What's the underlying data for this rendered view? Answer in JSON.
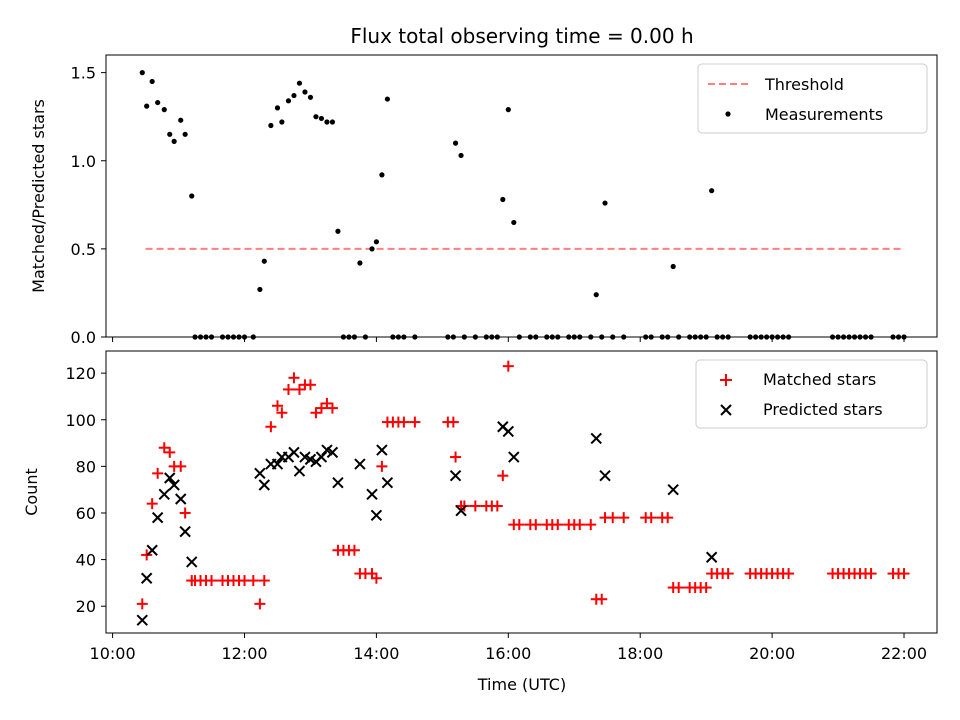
{
  "chart_data": [
    {
      "type": "scatter",
      "title": "Flux total observing time = 0.00 h",
      "xlabel": "",
      "ylabel": "Matched/Predicted stars",
      "xlim": [
        "09:54",
        "22:30"
      ],
      "ylim": [
        0,
        1.6
      ],
      "yticks": [
        "0.0",
        "0.5",
        "1.0",
        "1.5"
      ],
      "legend_position": "top-right",
      "legend": [
        {
          "label": "Threshold",
          "type": "dashed-line",
          "color": "#ff8080"
        },
        {
          "label": "Measurements",
          "type": "dot",
          "color": "#000000"
        }
      ],
      "threshold": {
        "name": "Threshold",
        "value": 0.5,
        "x_start": "10:30",
        "x_end": "22:00",
        "color": "#ff8080"
      },
      "series": [
        {
          "name": "Measurements",
          "color": "#000000",
          "points": [
            [
              "10:27",
              1.5
            ],
            [
              "10:31",
              1.31
            ],
            [
              "10:36",
              1.45
            ],
            [
              "10:41",
              1.33
            ],
            [
              "10:47",
              1.29
            ],
            [
              "10:52",
              1.15
            ],
            [
              "10:56",
              1.11
            ],
            [
              "11:02",
              1.23
            ],
            [
              "11:06",
              1.15
            ],
            [
              "11:12",
              0.8
            ],
            [
              "11:15",
              0.0
            ],
            [
              "11:20",
              0.0
            ],
            [
              "11:25",
              0.0
            ],
            [
              "11:30",
              0.0
            ],
            [
              "11:40",
              0.0
            ],
            [
              "11:45",
              0.0
            ],
            [
              "11:50",
              0.0
            ],
            [
              "11:55",
              0.0
            ],
            [
              "12:00",
              0.0
            ],
            [
              "12:08",
              0.0
            ],
            [
              "12:14",
              0.27
            ],
            [
              "12:18",
              0.43
            ],
            [
              "12:24",
              1.2
            ],
            [
              "12:30",
              1.3
            ],
            [
              "12:34",
              1.22
            ],
            [
              "12:40",
              1.34
            ],
            [
              "12:45",
              1.37
            ],
            [
              "12:50",
              1.44
            ],
            [
              "12:55",
              1.39
            ],
            [
              "13:00",
              1.36
            ],
            [
              "13:05",
              1.25
            ],
            [
              "13:10",
              1.24
            ],
            [
              "13:15",
              1.22
            ],
            [
              "13:20",
              1.22
            ],
            [
              "13:25",
              0.6
            ],
            [
              "13:30",
              0.0
            ],
            [
              "13:35",
              0.0
            ],
            [
              "13:40",
              0.0
            ],
            [
              "13:45",
              0.42
            ],
            [
              "13:50",
              0.0
            ],
            [
              "13:56",
              0.5
            ],
            [
              "14:00",
              0.54
            ],
            [
              "14:05",
              0.92
            ],
            [
              "14:10",
              1.35
            ],
            [
              "14:15",
              0.0
            ],
            [
              "14:20",
              0.0
            ],
            [
              "14:25",
              0.0
            ],
            [
              "14:35",
              0.0
            ],
            [
              "15:05",
              0.0
            ],
            [
              "15:10",
              0.0
            ],
            [
              "15:12",
              1.1
            ],
            [
              "15:17",
              1.03
            ],
            [
              "15:20",
              0.0
            ],
            [
              "15:30",
              0.0
            ],
            [
              "15:40",
              0.0
            ],
            [
              "15:45",
              0.0
            ],
            [
              "15:50",
              0.0
            ],
            [
              "15:55",
              0.78
            ],
            [
              "16:00",
              1.29
            ],
            [
              "16:05",
              0.65
            ],
            [
              "16:10",
              0.0
            ],
            [
              "16:20",
              0.0
            ],
            [
              "16:25",
              0.0
            ],
            [
              "16:35",
              0.0
            ],
            [
              "16:40",
              0.0
            ],
            [
              "16:45",
              0.0
            ],
            [
              "16:55",
              0.0
            ],
            [
              "17:00",
              0.0
            ],
            [
              "17:05",
              0.0
            ],
            [
              "17:15",
              0.0
            ],
            [
              "17:20",
              0.24
            ],
            [
              "17:25",
              0.0
            ],
            [
              "17:28",
              0.76
            ],
            [
              "17:35",
              0.0
            ],
            [
              "17:45",
              0.0
            ],
            [
              "18:05",
              0.0
            ],
            [
              "18:10",
              0.0
            ],
            [
              "18:20",
              0.0
            ],
            [
              "18:25",
              0.0
            ],
            [
              "18:30",
              0.4
            ],
            [
              "18:35",
              0.0
            ],
            [
              "18:45",
              0.0
            ],
            [
              "18:50",
              0.0
            ],
            [
              "18:55",
              0.0
            ],
            [
              "19:00",
              0.0
            ],
            [
              "19:05",
              0.83
            ],
            [
              "19:10",
              0.0
            ],
            [
              "19:15",
              0.0
            ],
            [
              "19:20",
              0.0
            ],
            [
              "19:40",
              0.0
            ],
            [
              "19:45",
              0.0
            ],
            [
              "19:50",
              0.0
            ],
            [
              "19:55",
              0.0
            ],
            [
              "20:00",
              0.0
            ],
            [
              "20:05",
              0.0
            ],
            [
              "20:10",
              0.0
            ],
            [
              "20:15",
              0.0
            ],
            [
              "20:55",
              0.0
            ],
            [
              "21:00",
              0.0
            ],
            [
              "21:05",
              0.0
            ],
            [
              "21:10",
              0.0
            ],
            [
              "21:15",
              0.0
            ],
            [
              "21:20",
              0.0
            ],
            [
              "21:25",
              0.0
            ],
            [
              "21:30",
              0.0
            ],
            [
              "21:50",
              0.0
            ],
            [
              "21:55",
              0.0
            ],
            [
              "22:00",
              0.0
            ]
          ]
        }
      ]
    },
    {
      "type": "scatter",
      "title": "",
      "xlabel": "Time (UTC)",
      "ylabel": "Count",
      "xlim": [
        "09:54",
        "22:30"
      ],
      "ylim": [
        8.5,
        129.5
      ],
      "xticks": [
        "10:00",
        "12:00",
        "14:00",
        "16:00",
        "18:00",
        "20:00",
        "22:00"
      ],
      "yticks": [
        "20",
        "40",
        "60",
        "80",
        "100",
        "120"
      ],
      "legend_position": "top-right",
      "legend": [
        {
          "label": "Matched stars",
          "type": "plus",
          "color": "#ff0000"
        },
        {
          "label": "Predicted stars",
          "type": "x",
          "color": "#000000"
        }
      ],
      "series": [
        {
          "name": "Matched stars",
          "marker": "plus",
          "color": "#ff0000",
          "points": [
            [
              "10:27",
              21
            ],
            [
              "10:31",
              42
            ],
            [
              "10:36",
              64
            ],
            [
              "10:41",
              77
            ],
            [
              "10:47",
              88
            ],
            [
              "10:52",
              86
            ],
            [
              "10:56",
              80
            ],
            [
              "11:02",
              80
            ],
            [
              "11:06",
              60
            ],
            [
              "11:12",
              31
            ],
            [
              "11:15",
              31
            ],
            [
              "11:20",
              31
            ],
            [
              "11:25",
              31
            ],
            [
              "11:30",
              31
            ],
            [
              "11:40",
              31
            ],
            [
              "11:45",
              31
            ],
            [
              "11:50",
              31
            ],
            [
              "11:55",
              31
            ],
            [
              "12:00",
              31
            ],
            [
              "12:08",
              31
            ],
            [
              "12:14",
              21
            ],
            [
              "12:18",
              31
            ],
            [
              "12:24",
              97
            ],
            [
              "12:30",
              106
            ],
            [
              "12:34",
              103
            ],
            [
              "12:40",
              113
            ],
            [
              "12:45",
              118
            ],
            [
              "12:50",
              113
            ],
            [
              "12:55",
              115
            ],
            [
              "13:00",
              115
            ],
            [
              "13:05",
              103
            ],
            [
              "13:10",
              105
            ],
            [
              "13:15",
              107
            ],
            [
              "13:20",
              105
            ],
            [
              "13:25",
              44
            ],
            [
              "13:30",
              44
            ],
            [
              "13:35",
              44
            ],
            [
              "13:40",
              44
            ],
            [
              "13:45",
              34
            ],
            [
              "13:50",
              34
            ],
            [
              "13:56",
              34
            ],
            [
              "14:00",
              32
            ],
            [
              "14:05",
              80
            ],
            [
              "14:10",
              99
            ],
            [
              "14:15",
              99
            ],
            [
              "14:20",
              99
            ],
            [
              "14:25",
              99
            ],
            [
              "14:35",
              99
            ],
            [
              "15:05",
              99
            ],
            [
              "15:10",
              99
            ],
            [
              "15:12",
              84
            ],
            [
              "15:17",
              63
            ],
            [
              "15:20",
              63
            ],
            [
              "15:30",
              63
            ],
            [
              "15:40",
              63
            ],
            [
              "15:45",
              63
            ],
            [
              "15:50",
              63
            ],
            [
              "15:55",
              76
            ],
            [
              "16:00",
              123
            ],
            [
              "16:05",
              55
            ],
            [
              "16:10",
              55
            ],
            [
              "16:20",
              55
            ],
            [
              "16:25",
              55
            ],
            [
              "16:35",
              55
            ],
            [
              "16:40",
              55
            ],
            [
              "16:45",
              55
            ],
            [
              "16:55",
              55
            ],
            [
              "17:00",
              55
            ],
            [
              "17:05",
              55
            ],
            [
              "17:15",
              55
            ],
            [
              "17:20",
              23
            ],
            [
              "17:25",
              23
            ],
            [
              "17:28",
              58
            ],
            [
              "17:35",
              58
            ],
            [
              "17:45",
              58
            ],
            [
              "18:05",
              58
            ],
            [
              "18:10",
              58
            ],
            [
              "18:20",
              58
            ],
            [
              "18:25",
              58
            ],
            [
              "18:30",
              28
            ],
            [
              "18:35",
              28
            ],
            [
              "18:45",
              28
            ],
            [
              "18:50",
              28
            ],
            [
              "18:55",
              28
            ],
            [
              "19:00",
              28
            ],
            [
              "19:05",
              34
            ],
            [
              "19:10",
              34
            ],
            [
              "19:15",
              34
            ],
            [
              "19:20",
              34
            ],
            [
              "19:40",
              34
            ],
            [
              "19:45",
              34
            ],
            [
              "19:50",
              34
            ],
            [
              "19:55",
              34
            ],
            [
              "20:00",
              34
            ],
            [
              "20:05",
              34
            ],
            [
              "20:10",
              34
            ],
            [
              "20:15",
              34
            ],
            [
              "20:55",
              34
            ],
            [
              "21:00",
              34
            ],
            [
              "21:05",
              34
            ],
            [
              "21:10",
              34
            ],
            [
              "21:15",
              34
            ],
            [
              "21:20",
              34
            ],
            [
              "21:25",
              34
            ],
            [
              "21:30",
              34
            ],
            [
              "21:50",
              34
            ],
            [
              "21:55",
              34
            ],
            [
              "22:00",
              34
            ]
          ]
        },
        {
          "name": "Predicted stars",
          "marker": "x",
          "color": "#000000",
          "points": [
            [
              "10:27",
              14
            ],
            [
              "10:31",
              32
            ],
            [
              "10:36",
              44
            ],
            [
              "10:41",
              58
            ],
            [
              "10:47",
              68
            ],
            [
              "10:52",
              75
            ],
            [
              "10:56",
              72
            ],
            [
              "11:02",
              66
            ],
            [
              "11:06",
              52
            ],
            [
              "11:12",
              39
            ],
            [
              "12:14",
              77
            ],
            [
              "12:18",
              72
            ],
            [
              "12:24",
              81
            ],
            [
              "12:30",
              81
            ],
            [
              "12:34",
              84
            ],
            [
              "12:40",
              84
            ],
            [
              "12:45",
              86
            ],
            [
              "12:50",
              78
            ],
            [
              "12:55",
              84
            ],
            [
              "13:00",
              83
            ],
            [
              "13:05",
              82
            ],
            [
              "13:10",
              84
            ],
            [
              "13:15",
              87
            ],
            [
              "13:20",
              86
            ],
            [
              "13:25",
              73
            ],
            [
              "13:45",
              81
            ],
            [
              "13:56",
              68
            ],
            [
              "14:00",
              59
            ],
            [
              "14:05",
              87
            ],
            [
              "14:10",
              73
            ],
            [
              "15:12",
              76
            ],
            [
              "15:17",
              61
            ],
            [
              "15:55",
              97
            ],
            [
              "16:00",
              95
            ],
            [
              "16:05",
              84
            ],
            [
              "17:20",
              92
            ],
            [
              "17:28",
              76
            ],
            [
              "18:30",
              70
            ],
            [
              "19:05",
              41
            ]
          ]
        }
      ]
    }
  ]
}
